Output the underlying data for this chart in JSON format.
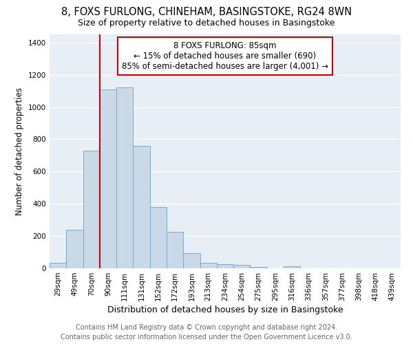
{
  "title": "8, FOXS FURLONG, CHINEHAM, BASINGSTOKE, RG24 8WN",
  "subtitle": "Size of property relative to detached houses in Basingstoke",
  "xlabel": "Distribution of detached houses by size in Basingstoke",
  "ylabel": "Number of detached properties",
  "categories": [
    "29sqm",
    "49sqm",
    "70sqm",
    "90sqm",
    "111sqm",
    "131sqm",
    "152sqm",
    "172sqm",
    "193sqm",
    "213sqm",
    "234sqm",
    "254sqm",
    "275sqm",
    "295sqm",
    "316sqm",
    "336sqm",
    "357sqm",
    "377sqm",
    "398sqm",
    "418sqm",
    "439sqm"
  ],
  "values": [
    35,
    240,
    730,
    1110,
    1120,
    760,
    380,
    225,
    95,
    35,
    25,
    20,
    10,
    0,
    12,
    0,
    0,
    0,
    0,
    0,
    0
  ],
  "bar_color": "#c9d9e8",
  "bar_edge_color": "#7baac8",
  "bg_color": "#e8eef5",
  "grid_color": "#ffffff",
  "vline_color": "#cc0000",
  "annotation_line1": "8 FOXS FURLONG: 85sqm",
  "annotation_line2": "← 15% of detached houses are smaller (690)",
  "annotation_line3": "85% of semi-detached houses are larger (4,001) →",
  "annotation_box_color": "#cc0000",
  "footer_line1": "Contains HM Land Registry data © Crown copyright and database right 2024.",
  "footer_line2": "Contains public sector information licensed under the Open Government Licence v3.0.",
  "ylim": [
    0,
    1450
  ],
  "yticks": [
    0,
    200,
    400,
    600,
    800,
    1000,
    1200,
    1400
  ],
  "title_fontsize": 10.5,
  "subtitle_fontsize": 9,
  "xlabel_fontsize": 9,
  "ylabel_fontsize": 8.5,
  "tick_fontsize": 7.5,
  "annotation_fontsize": 8.5,
  "footer_fontsize": 7
}
